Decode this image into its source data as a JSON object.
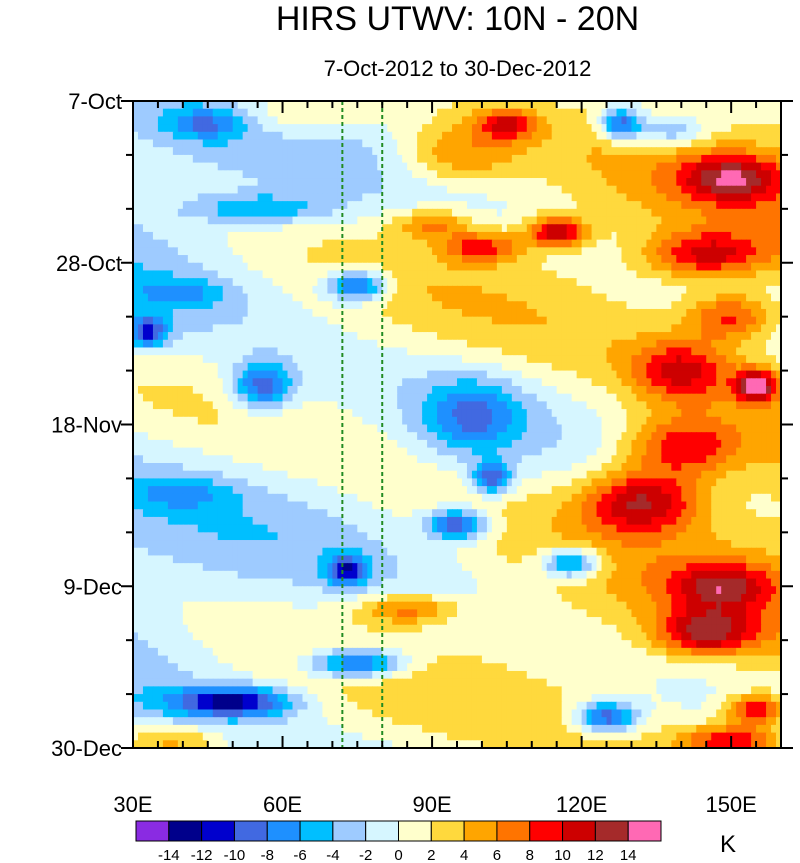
{
  "chart_data": {
    "type": "heatmap",
    "title": "HIRS UTWV: 10N - 20N",
    "subtitle": "7-Oct-2012 to 30-Dec-2012",
    "x_ticks": [
      {
        "value": 30,
        "label": "30E"
      },
      {
        "value": 60,
        "label": "60E"
      },
      {
        "value": 90,
        "label": "90E"
      },
      {
        "value": 120,
        "label": "120E"
      },
      {
        "value": 150,
        "label": "150E"
      }
    ],
    "x_range": [
      30,
      160
    ],
    "y_ticks": [
      {
        "day": 0,
        "label": "7-Oct"
      },
      {
        "day": 21,
        "label": "28-Oct"
      },
      {
        "day": 42,
        "label": "18-Nov"
      },
      {
        "day": 63,
        "label": "9-Dec"
      },
      {
        "day": 84,
        "label": "30-Dec"
      }
    ],
    "y_range_days": [
      0,
      84
    ],
    "reference_lines_lon": [
      72,
      80
    ],
    "colorbar": {
      "levels": [
        "-14",
        "-12",
        "-10",
        "-8",
        "-6",
        "-4",
        "-2",
        "0",
        "2",
        "4",
        "6",
        "8",
        "10",
        "12",
        "14"
      ],
      "colors": [
        "#8a2be2",
        "#00008b",
        "#0000cd",
        "#4169e1",
        "#1e90ff",
        "#00bfff",
        "#9ecbff",
        "#d6f6ff",
        "#ffffcc",
        "#ffd93d",
        "#ffa500",
        "#ff7400",
        "#ff0000",
        "#cd0000",
        "#a52a2a",
        "#ff69b4"
      ],
      "unit": "K"
    },
    "features": [
      {
        "lon": 45,
        "day": 3,
        "value": -6,
        "sx": 8,
        "sy": 2
      },
      {
        "lon": 62,
        "day": 2,
        "value": 4,
        "sx": 14,
        "sy": 3
      },
      {
        "lon": 105,
        "day": 3,
        "value": 8,
        "sx": 6,
        "sy": 2
      },
      {
        "lon": 128,
        "day": 3,
        "value": -11,
        "sx": 4,
        "sy": 2
      },
      {
        "lon": 138,
        "day": 4,
        "value": -6,
        "sx": 7,
        "sy": 2
      },
      {
        "lon": 95,
        "day": 7,
        "value": 6,
        "sx": 12,
        "sy": 4
      },
      {
        "lon": 150,
        "day": 10,
        "value": 9,
        "sx": 10,
        "sy": 3
      },
      {
        "lon": 55,
        "day": 14,
        "value": -6,
        "sx": 14,
        "sy": 2
      },
      {
        "lon": 90,
        "day": 16,
        "value": 6,
        "sx": 8,
        "sy": 2
      },
      {
        "lon": 115,
        "day": 17,
        "value": 11,
        "sx": 6,
        "sy": 2
      },
      {
        "lon": 100,
        "day": 19,
        "value": 8,
        "sx": 8,
        "sy": 2
      },
      {
        "lon": 145,
        "day": 20,
        "value": 9,
        "sx": 12,
        "sy": 3
      },
      {
        "lon": 75,
        "day": 24,
        "value": -11,
        "sx": 6,
        "sy": 2
      },
      {
        "lon": 40,
        "day": 25,
        "value": -4,
        "sx": 10,
        "sy": 2
      },
      {
        "lon": 150,
        "day": 28,
        "value": 8,
        "sx": 9,
        "sy": 3
      },
      {
        "lon": 33,
        "day": 30,
        "value": -10,
        "sx": 4,
        "sy": 2
      },
      {
        "lon": 56,
        "day": 37,
        "value": -10,
        "sx": 6,
        "sy": 3
      },
      {
        "lon": 155,
        "day": 37,
        "value": 13,
        "sx": 4,
        "sy": 2
      },
      {
        "lon": 140,
        "day": 35,
        "value": 8,
        "sx": 10,
        "sy": 4
      },
      {
        "lon": 98,
        "day": 41,
        "value": -7,
        "sx": 10,
        "sy": 5
      },
      {
        "lon": 140,
        "day": 45,
        "value": 9,
        "sx": 12,
        "sy": 4
      },
      {
        "lon": 102,
        "day": 49,
        "value": -10,
        "sx": 4,
        "sy": 2
      },
      {
        "lon": 132,
        "day": 52,
        "value": 11,
        "sx": 12,
        "sy": 4
      },
      {
        "lon": 95,
        "day": 55,
        "value": -11,
        "sx": 6,
        "sy": 2
      },
      {
        "lon": 40,
        "day": 51,
        "value": -4,
        "sx": 10,
        "sy": 2
      },
      {
        "lon": 73,
        "day": 61,
        "value": -10,
        "sx": 4,
        "sy": 2
      },
      {
        "lon": 118,
        "day": 60,
        "value": -10,
        "sx": 6,
        "sy": 2
      },
      {
        "lon": 148,
        "day": 63,
        "value": 8,
        "sx": 10,
        "sy": 3
      },
      {
        "lon": 85,
        "day": 66,
        "value": 7,
        "sx": 10,
        "sy": 2
      },
      {
        "lon": 145,
        "day": 69,
        "value": 10,
        "sx": 10,
        "sy": 3
      },
      {
        "lon": 75,
        "day": 73,
        "value": -11,
        "sx": 10,
        "sy": 2
      },
      {
        "lon": 50,
        "day": 78,
        "value": -12,
        "sx": 12,
        "sy": 2
      },
      {
        "lon": 125,
        "day": 80,
        "value": -11,
        "sx": 6,
        "sy": 2
      },
      {
        "lon": 155,
        "day": 79,
        "value": 10,
        "sx": 6,
        "sy": 2
      },
      {
        "lon": 150,
        "day": 83,
        "value": 9,
        "sx": 10,
        "sy": 2
      },
      {
        "lon": 38,
        "day": 83,
        "value": 5,
        "sx": 10,
        "sy": 2
      }
    ]
  }
}
